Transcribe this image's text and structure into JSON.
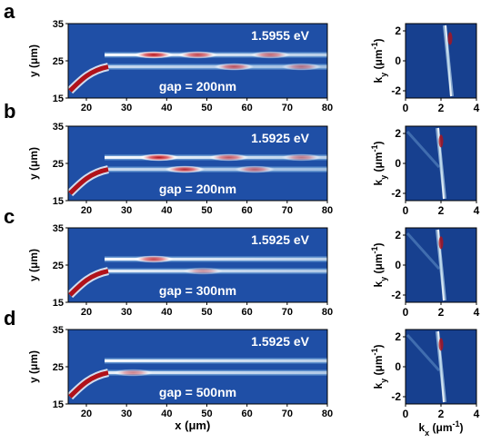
{
  "figure": {
    "panels": [
      {
        "letter": "a",
        "energy": "1.5955 eV",
        "gap": "gap = 200nm",
        "left_plot": {
          "y_ticks": [
            "35",
            "25",
            "15"
          ],
          "x_ticks": [
            "20",
            "30",
            "40",
            "50",
            "60",
            "70",
            "80"
          ],
          "ylabel": "y (μm)"
        },
        "right_plot": {
          "y_ticks": [
            "2",
            "0",
            "-2"
          ],
          "x_ticks": [
            "0",
            "2",
            "4"
          ],
          "ylabel_main": "k",
          "ylabel_sub": "y",
          "ylabel_rest": " (μm",
          "ylabel_sup": "-1",
          "ylabel_end": ")"
        }
      },
      {
        "letter": "b",
        "energy": "1.5925 eV",
        "gap": "gap = 200nm",
        "left_plot": {
          "y_ticks": [
            "35",
            "25",
            "15"
          ],
          "x_ticks": [
            "20",
            "30",
            "40",
            "50",
            "60",
            "70",
            "80"
          ],
          "ylabel": "y (μm)"
        },
        "right_plot": {
          "y_ticks": [
            "2",
            "0",
            "-2"
          ],
          "x_ticks": [
            "0",
            "2",
            "4"
          ],
          "ylabel_main": "k",
          "ylabel_sub": "y",
          "ylabel_rest": " (μm",
          "ylabel_sup": "-1",
          "ylabel_end": ")"
        }
      },
      {
        "letter": "c",
        "energy": "1.5925 eV",
        "gap": "gap = 300nm",
        "left_plot": {
          "y_ticks": [
            "35",
            "25",
            "15"
          ],
          "x_ticks": [
            "20",
            "30",
            "40",
            "50",
            "60",
            "70",
            "80"
          ],
          "ylabel": "y (μm)"
        },
        "right_plot": {
          "y_ticks": [
            "2",
            "0",
            "-2"
          ],
          "x_ticks": [
            "0",
            "2",
            "4"
          ],
          "ylabel_main": "k",
          "ylabel_sub": "y",
          "ylabel_rest": " (μm",
          "ylabel_sup": "-1",
          "ylabel_end": ")"
        }
      },
      {
        "letter": "d",
        "energy": "1.5925 eV",
        "gap": "gap = 500nm",
        "left_plot": {
          "y_ticks": [
            "35",
            "25",
            "15"
          ],
          "x_ticks": [
            "20",
            "30",
            "40",
            "50",
            "60",
            "70",
            "80"
          ],
          "ylabel": "y (μm)",
          "xlabel": "x (μm)"
        },
        "right_plot": {
          "y_ticks": [
            "2",
            "0",
            "-2"
          ],
          "x_ticks": [
            "0",
            "2",
            "4"
          ],
          "ylabel_main": "k",
          "ylabel_sub": "y",
          "ylabel_rest": " (μm",
          "ylabel_sup": "-1",
          "ylabel_end": ")",
          "xlabel_main": "k",
          "xlabel_sub": "x",
          "xlabel_rest": " (μm",
          "xlabel_sup": "-1",
          "xlabel_end": ")"
        }
      }
    ],
    "colors": {
      "background_blue": "#1f4fa6",
      "dark_blue": "#17408f",
      "light_blue": "#7fb0e0",
      "cyan": "#bde3f5",
      "white": "#ffffff",
      "red": "#b0121a",
      "dark_red": "#7a0c10"
    }
  }
}
